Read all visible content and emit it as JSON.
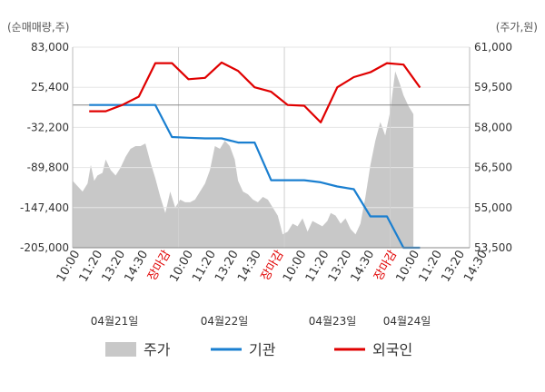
{
  "chart_data": {
    "type": "line",
    "y_left_unit": "(순매매량,주)",
    "y_right_unit": "(주가,원)",
    "y_left_ticks": [
      "83,000",
      "25,400",
      "-32,200",
      "-89,800",
      "-147,400",
      "-205,000"
    ],
    "y_right_ticks": [
      "61,000",
      "59,500",
      "58,000",
      "56,500",
      "55,000",
      "53,500"
    ],
    "y_left_range": [
      -205000,
      83000
    ],
    "y_right_range": [
      53500,
      61000
    ],
    "zero_line_left_value": 0,
    "x_tick_labels": [
      "10:00",
      "11:20",
      "13:20",
      "14:30",
      "장마감",
      "10:00",
      "11:20",
      "13:20",
      "14:30",
      "장마감",
      "10:00",
      "11:20",
      "13:20",
      "14:30",
      "장마감",
      "10:00",
      "11:20",
      "13:20",
      "14:30"
    ],
    "x_tick_is_close": [
      false,
      false,
      false,
      false,
      true,
      false,
      false,
      false,
      false,
      true,
      false,
      false,
      false,
      false,
      true,
      false,
      false,
      false,
      false
    ],
    "date_labels": [
      "04월21일",
      "04월22일",
      "04월23일",
      "04월24일"
    ],
    "x_range": [
      0,
      24
    ],
    "series": [
      {
        "name": "주가",
        "axis": "right",
        "style": "area",
        "color": "#c8c8c8",
        "x": [
          0,
          0.3,
          0.6,
          0.9,
          1.1,
          1.3,
          1.5,
          1.8,
          2.0,
          2.3,
          2.6,
          2.9,
          3.2,
          3.5,
          3.8,
          4.1,
          4.4,
          4.7,
          5.0,
          5.3,
          5.6,
          5.9,
          6.2,
          6.5,
          6.8,
          7.1,
          7.4,
          7.7,
          8.0,
          8.3,
          8.6,
          8.9,
          9.2,
          9.5,
          9.8,
          10.0,
          10.3,
          10.6,
          10.9,
          11.2,
          11.5,
          11.8,
          12.1,
          12.4,
          12.7,
          13.0,
          13.3,
          13.6,
          13.9,
          14.2,
          14.5,
          14.8,
          15.1,
          15.4,
          15.6,
          15.9,
          16.2,
          16.5,
          16.8,
          17.1,
          17.4,
          17.7,
          18.0,
          18.3,
          18.6,
          18.9,
          19.2,
          19.5,
          19.8,
          20.0,
          20.3,
          20.6
        ],
        "values": [
          56.0,
          55.8,
          55.6,
          55.9,
          56.6,
          56.0,
          56.2,
          56.3,
          56.8,
          56.4,
          56.2,
          56.5,
          56.9,
          57.2,
          57.3,
          57.3,
          57.4,
          56.7,
          56.1,
          55.4,
          54.8,
          55.6,
          55.0,
          55.3,
          55.2,
          55.2,
          55.3,
          55.6,
          55.9,
          56.4,
          57.3,
          57.2,
          57.5,
          57.3,
          56.8,
          56.0,
          55.6,
          55.5,
          55.3,
          55.2,
          55.4,
          55.3,
          55.0,
          54.7,
          54.0,
          54.1,
          54.4,
          54.3,
          54.6,
          54.1,
          54.5,
          54.4,
          54.3,
          54.5,
          54.8,
          54.7,
          54.4,
          54.6,
          54.2,
          54.0,
          54.4,
          55.4,
          56.6,
          57.5,
          58.2,
          57.7,
          58.6,
          60.1,
          59.6,
          59.2,
          58.8,
          58.5
        ]
      },
      {
        "name": "기관",
        "axis": "left",
        "style": "line",
        "color": "#1a7fd0",
        "x": [
          1,
          2,
          3,
          4,
          5,
          6,
          7,
          8,
          9,
          10,
          11,
          12,
          13,
          14,
          15,
          16,
          17,
          18,
          19,
          20,
          21
        ],
        "values": [
          0,
          0,
          0,
          0,
          0,
          -46000,
          -47000,
          -48000,
          -48000,
          -54000,
          -54000,
          -108000,
          -108000,
          -108000,
          -111000,
          -117000,
          -121000,
          -160000,
          -160000,
          -205000,
          -205000
        ]
      },
      {
        "name": "외국인",
        "axis": "left",
        "style": "line",
        "color": "#e00000",
        "x": [
          1,
          2,
          3,
          4,
          5,
          6,
          7,
          8,
          9,
          10,
          11,
          12,
          13,
          14,
          15,
          16,
          17,
          18,
          19,
          20,
          21
        ],
        "values": [
          -9000,
          -9000,
          0,
          12000,
          60000,
          60000,
          37000,
          39000,
          61000,
          49000,
          25400,
          19000,
          0,
          -1000,
          -25000,
          25400,
          40000,
          47000,
          60000,
          58000,
          25000
        ]
      }
    ]
  },
  "legend": {
    "items": [
      {
        "label": "주가",
        "color": "#c8c8c8"
      },
      {
        "label": "기관",
        "color": "#1a7fd0"
      },
      {
        "label": "외국인",
        "color": "#e00000"
      }
    ]
  }
}
